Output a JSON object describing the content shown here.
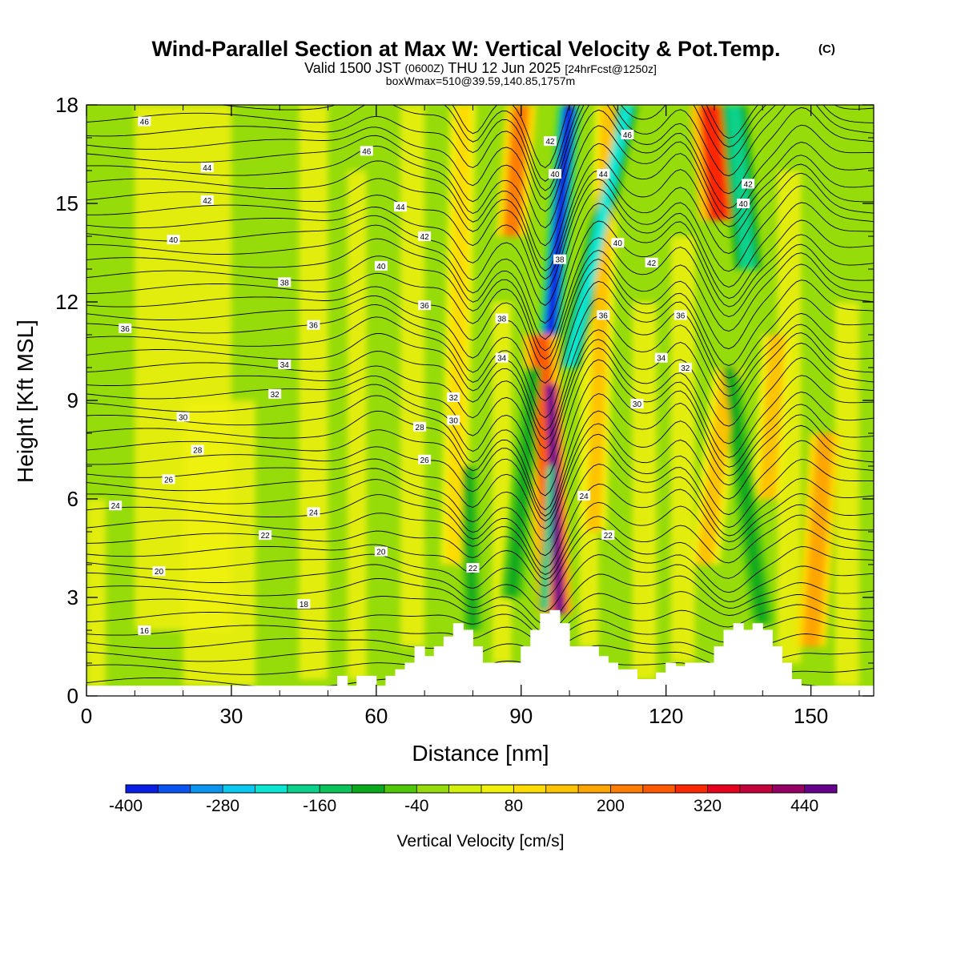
{
  "title": {
    "main": "Wind-Parallel Section at Max W: Vertical Velocity & Pot.Temp.",
    "unit_tag": "(C)",
    "valid_prefix": "Valid 1500 JST",
    "valid_utc": "(0600Z)",
    "valid_date": "THU 12 Jun 2025",
    "forecast": "[24hrFcst@1250z]",
    "box_info": "boxWmax=510@39.59,140.85,1757m"
  },
  "chart_data": {
    "type": "heatmap",
    "xlabel": "Distance [nm]",
    "ylabel": "Height [Kft MSL]",
    "xlim": [
      0,
      163
    ],
    "ylim": [
      0,
      18
    ],
    "x_ticks": [
      0,
      30,
      60,
      90,
      120,
      150
    ],
    "y_ticks": [
      0,
      3,
      6,
      9,
      12,
      15,
      18
    ],
    "colorbar": {
      "label": "Vertical Velocity [cm/s]",
      "min": -400,
      "max": 480,
      "step": 40,
      "tick_labels": [
        -400,
        -280,
        -160,
        -40,
        80,
        200,
        320,
        440
      ],
      "colors": [
        "#0a1ee6",
        "#0a55f0",
        "#0a96f0",
        "#0ac8f0",
        "#0ae6d2",
        "#0ad28c",
        "#0ac35a",
        "#0aaa1e",
        "#50c80a",
        "#96dc0a",
        "#d2f00a",
        "#f0f00a",
        "#ffdc00",
        "#ffc300",
        "#ffa500",
        "#ff7d00",
        "#ff5a00",
        "#ff2800",
        "#e6001e",
        "#c3003c",
        "#960064",
        "#64008c"
      ]
    },
    "terrain_kft": [
      [
        0,
        0.3
      ],
      [
        46,
        0.3
      ],
      [
        48,
        0.3
      ],
      [
        52,
        0.6
      ],
      [
        54,
        0.3
      ],
      [
        56,
        0.6
      ],
      [
        60,
        0.3
      ],
      [
        62,
        0.6
      ],
      [
        64,
        0.8
      ],
      [
        66,
        1.0
      ],
      [
        68,
        1.5
      ],
      [
        70,
        1.2
      ],
      [
        72,
        1.5
      ],
      [
        74,
        1.8
      ],
      [
        76,
        2.2
      ],
      [
        78,
        2.0
      ],
      [
        80,
        1.5
      ],
      [
        82,
        1.0
      ],
      [
        84,
        1.0
      ],
      [
        86,
        1.0
      ],
      [
        88,
        1.0
      ],
      [
        90,
        1.5
      ],
      [
        92,
        2.0
      ],
      [
        94,
        2.5
      ],
      [
        96,
        2.6
      ],
      [
        98,
        2.2
      ],
      [
        100,
        1.5
      ],
      [
        102,
        1.5
      ],
      [
        104,
        1.5
      ],
      [
        106,
        1.2
      ],
      [
        108,
        1.0
      ],
      [
        110,
        0.8
      ],
      [
        114,
        0.5
      ],
      [
        116,
        0.5
      ],
      [
        118,
        0.7
      ],
      [
        120,
        1.0
      ],
      [
        122,
        0.9
      ],
      [
        124,
        1.0
      ],
      [
        126,
        1.0
      ],
      [
        128,
        1.0
      ],
      [
        130,
        1.5
      ],
      [
        132,
        2.0
      ],
      [
        134,
        2.2
      ],
      [
        136,
        2.0
      ],
      [
        138,
        2.2
      ],
      [
        140,
        2.0
      ],
      [
        142,
        1.5
      ],
      [
        144,
        1.0
      ],
      [
        146,
        0.5
      ],
      [
        148,
        0.3
      ],
      [
        150,
        0.3
      ],
      [
        163,
        0.3
      ]
    ],
    "updraft_bands": [
      {
        "x_bottom": 98,
        "x_top": 96,
        "w": 480,
        "y_from": 2.5,
        "y_to": 9.5,
        "width_nm": 2.0
      },
      {
        "x_bottom": 97,
        "x_top": 94,
        "w": 240,
        "y_from": 2.5,
        "y_to": 11.0,
        "width_nm": 4.0
      },
      {
        "x_bottom": 88,
        "x_top": 90,
        "w": 200,
        "y_from": 14.0,
        "y_to": 18.0,
        "width_nm": 3.5
      },
      {
        "x_bottom": 131,
        "x_top": 129,
        "w": 280,
        "y_from": 14.5,
        "y_to": 18.0,
        "width_nm": 4.5
      },
      {
        "x_bottom": 150,
        "x_top": 153,
        "w": 160,
        "y_from": 1.5,
        "y_to": 8.0,
        "width_nm": 3.5
      },
      {
        "x_bottom": 128,
        "x_top": 133,
        "w": 120,
        "y_from": 4.0,
        "y_to": 10.0,
        "width_nm": 3.5
      },
      {
        "x_bottom": 141,
        "x_top": 143,
        "w": 120,
        "y_from": 6.0,
        "y_to": 11.0,
        "width_nm": 3.5
      },
      {
        "x_bottom": 105,
        "x_top": 108,
        "w": 120,
        "y_from": 5.0,
        "y_to": 18.0,
        "width_nm": 3.0
      },
      {
        "x_bottom": 76,
        "x_top": 78,
        "w": 80,
        "y_from": 4.0,
        "y_to": 18.0,
        "width_nm": 3.0
      }
    ],
    "downdraft_bands": [
      {
        "x_bottom": 96,
        "x_top": 100,
        "w": -400,
        "y_from": 11.0,
        "y_to": 18.0,
        "width_nm": 2.5
      },
      {
        "x_bottom": 100,
        "x_top": 112,
        "w": -240,
        "y_from": 10.0,
        "y_to": 18.0,
        "width_nm": 2.5
      },
      {
        "x_bottom": 95,
        "x_top": 96,
        "w": -200,
        "y_from": 2.6,
        "y_to": 7.0,
        "width_nm": 1.5
      },
      {
        "x_bottom": 137,
        "x_top": 134,
        "w": -200,
        "y_from": 13.0,
        "y_to": 18.0,
        "width_nm": 3.0
      },
      {
        "x_bottom": 88,
        "x_top": 93,
        "w": -120,
        "y_from": 3.0,
        "y_to": 10.0,
        "width_nm": 2.5
      },
      {
        "x_bottom": 80,
        "x_top": 79,
        "w": -120,
        "y_from": 2.0,
        "y_to": 7.0,
        "width_nm": 2.0
      },
      {
        "x_bottom": 140,
        "x_top": 133,
        "w": -120,
        "y_from": 2.2,
        "y_to": 10.0,
        "width_nm": 2.5
      }
    ],
    "theta_contours": [
      {
        "value": 16,
        "label_xy": [
          12,
          2.0
        ]
      },
      {
        "value": 18,
        "label_xy": [
          45,
          2.8
        ]
      },
      {
        "value": 20,
        "label_xy": [
          15,
          3.8
        ]
      },
      {
        "value": 20,
        "label_xy": [
          61,
          4.4
        ]
      },
      {
        "value": 22,
        "label_xy": [
          37,
          4.9
        ]
      },
      {
        "value": 22,
        "label_xy": [
          80,
          3.9
        ]
      },
      {
        "value": 22,
        "label_xy": [
          108,
          4.9
        ]
      },
      {
        "value": 24,
        "label_xy": [
          6,
          5.8
        ]
      },
      {
        "value": 24,
        "label_xy": [
          47,
          5.6
        ]
      },
      {
        "value": 24,
        "label_xy": [
          103,
          6.1
        ]
      },
      {
        "value": 26,
        "label_xy": [
          17,
          6.6
        ]
      },
      {
        "value": 26,
        "label_xy": [
          70,
          7.2
        ]
      },
      {
        "value": 28,
        "label_xy": [
          23,
          7.5
        ]
      },
      {
        "value": 28,
        "label_xy": [
          69,
          8.2
        ]
      },
      {
        "value": 30,
        "label_xy": [
          20,
          8.5
        ]
      },
      {
        "value": 30,
        "label_xy": [
          76,
          8.4
        ]
      },
      {
        "value": 30,
        "label_xy": [
          114,
          8.9
        ]
      },
      {
        "value": 32,
        "label_xy": [
          39,
          9.2
        ]
      },
      {
        "value": 32,
        "label_xy": [
          76,
          9.1
        ]
      },
      {
        "value": 32,
        "label_xy": [
          124,
          10.0
        ]
      },
      {
        "value": 34,
        "label_xy": [
          41,
          10.1
        ]
      },
      {
        "value": 34,
        "label_xy": [
          86,
          10.3
        ]
      },
      {
        "value": 34,
        "label_xy": [
          119,
          10.3
        ]
      },
      {
        "value": 36,
        "label_xy": [
          8,
          11.2
        ]
      },
      {
        "value": 36,
        "label_xy": [
          47,
          11.3
        ]
      },
      {
        "value": 36,
        "label_xy": [
          70,
          11.9
        ]
      },
      {
        "value": 36,
        "label_xy": [
          107,
          11.6
        ]
      },
      {
        "value": 36,
        "label_xy": [
          123,
          11.6
        ]
      },
      {
        "value": 38,
        "label_xy": [
          41,
          12.6
        ]
      },
      {
        "value": 38,
        "label_xy": [
          86,
          11.5
        ]
      },
      {
        "value": 38,
        "label_xy": [
          98,
          13.3
        ]
      },
      {
        "value": 40,
        "label_xy": [
          18,
          13.9
        ]
      },
      {
        "value": 40,
        "label_xy": [
          61,
          13.1
        ]
      },
      {
        "value": 40,
        "label_xy": [
          97,
          15.9
        ]
      },
      {
        "value": 40,
        "label_xy": [
          110,
          13.8
        ]
      },
      {
        "value": 40,
        "label_xy": [
          136,
          15.0
        ]
      },
      {
        "value": 42,
        "label_xy": [
          25,
          15.1
        ]
      },
      {
        "value": 42,
        "label_xy": [
          70,
          14.0
        ]
      },
      {
        "value": 42,
        "label_xy": [
          96,
          16.9
        ]
      },
      {
        "value": 42,
        "label_xy": [
          117,
          13.2
        ]
      },
      {
        "value": 42,
        "label_xy": [
          137,
          15.6
        ]
      },
      {
        "value": 44,
        "label_xy": [
          25,
          16.1
        ]
      },
      {
        "value": 44,
        "label_xy": [
          65,
          14.9
        ]
      },
      {
        "value": 44,
        "label_xy": [
          107,
          15.9
        ]
      },
      {
        "value": 46,
        "label_xy": [
          12,
          17.5
        ]
      },
      {
        "value": 46,
        "label_xy": [
          58,
          16.6
        ]
      },
      {
        "value": 46,
        "label_xy": [
          112,
          17.1
        ]
      }
    ],
    "grid": false
  }
}
